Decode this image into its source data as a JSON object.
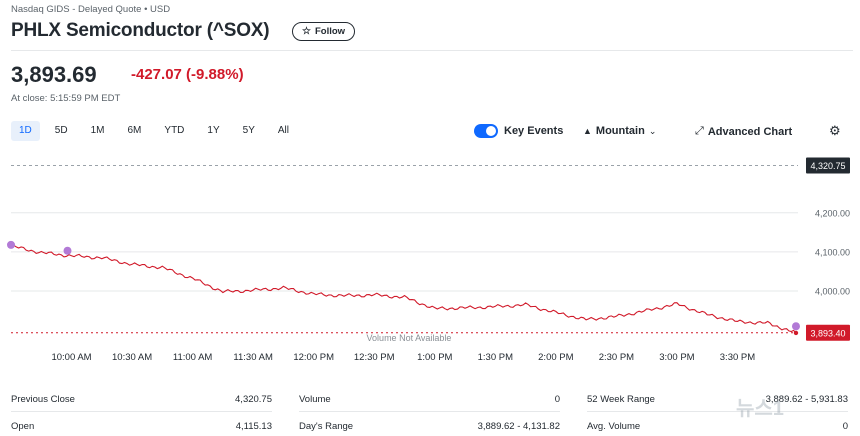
{
  "header": {
    "exchange": "Nasdaq GIDS - Delayed Quote • USD",
    "title": "PHLX Semiconductor (^SOX)",
    "follow_label": "Follow"
  },
  "quote": {
    "price": "3,893.69",
    "change": "-427.07",
    "change_pct": "(-9.88%)",
    "at_close": "At close: 5:15:59 PM EDT"
  },
  "toolbar": {
    "ranges": [
      "1D",
      "5D",
      "1M",
      "6M",
      "YTD",
      "1Y",
      "5Y",
      "All"
    ],
    "active_range": "1D",
    "key_events_label": "Key Events",
    "mountain_label": "Mountain",
    "advanced_chart_label": "Advanced Chart"
  },
  "chart_data": {
    "type": "line",
    "x_ticks": [
      "10:00 AM",
      "10:30 AM",
      "11:00 AM",
      "11:30 AM",
      "12:00 PM",
      "12:30 PM",
      "1:00 PM",
      "1:30 PM",
      "2:00 PM",
      "2:30 PM",
      "3:00 PM",
      "3:30 PM"
    ],
    "y_ticks": [
      "4,200.00",
      "4,100.00",
      "4,000.00"
    ],
    "ylim": [
      3880,
      4340
    ],
    "prev_close_label": "4,320.75",
    "prev_close": 4320.75,
    "current_label": "3,893.40",
    "current": 3893.4,
    "volume_note": "Volume Not Available",
    "series": [
      {
        "x": [
          "09:30",
          "09:45",
          "10:00",
          "10:15",
          "10:30",
          "10:45",
          "11:00",
          "11:15",
          "11:30",
          "11:45",
          "12:00",
          "12:15",
          "12:30",
          "12:45",
          "13:00",
          "13:15",
          "13:30",
          "13:45",
          "14:00",
          "14:15",
          "14:30",
          "14:45",
          "15:00",
          "15:15",
          "15:30",
          "15:45",
          "15:59"
        ],
        "values": [
          4115,
          4098,
          4090,
          4085,
          4068,
          4060,
          4032,
          3998,
          4002,
          4008,
          3992,
          3988,
          3990,
          3984,
          3955,
          3957,
          3960,
          3965,
          3945,
          3927,
          3935,
          3950,
          3967,
          3940,
          3922,
          3918,
          3893
        ]
      }
    ],
    "event_markers": [
      {
        "x": "09:30",
        "value": 4118
      },
      {
        "x": "09:58",
        "value": 4103
      },
      {
        "x": "15:59",
        "value": 3910
      }
    ],
    "colors": {
      "line": "#d11a2a",
      "marker": "#b27ad6",
      "prev_close_badge": "#232a31",
      "current_badge": "#d11a2a"
    }
  },
  "stats": {
    "col1": [
      {
        "label": "Previous Close",
        "value": "4,320.75"
      },
      {
        "label": "Open",
        "value": "4,115.13"
      }
    ],
    "col2": [
      {
        "label": "Volume",
        "value": "0"
      },
      {
        "label": "Day's Range",
        "value": "3,889.62 - 4,131.82"
      }
    ],
    "col3": [
      {
        "label": "52 Week Range",
        "value": "3,889.62 - 5,931.83"
      },
      {
        "label": "Avg. Volume",
        "value": "0"
      }
    ]
  },
  "watermark": "뉴스1"
}
